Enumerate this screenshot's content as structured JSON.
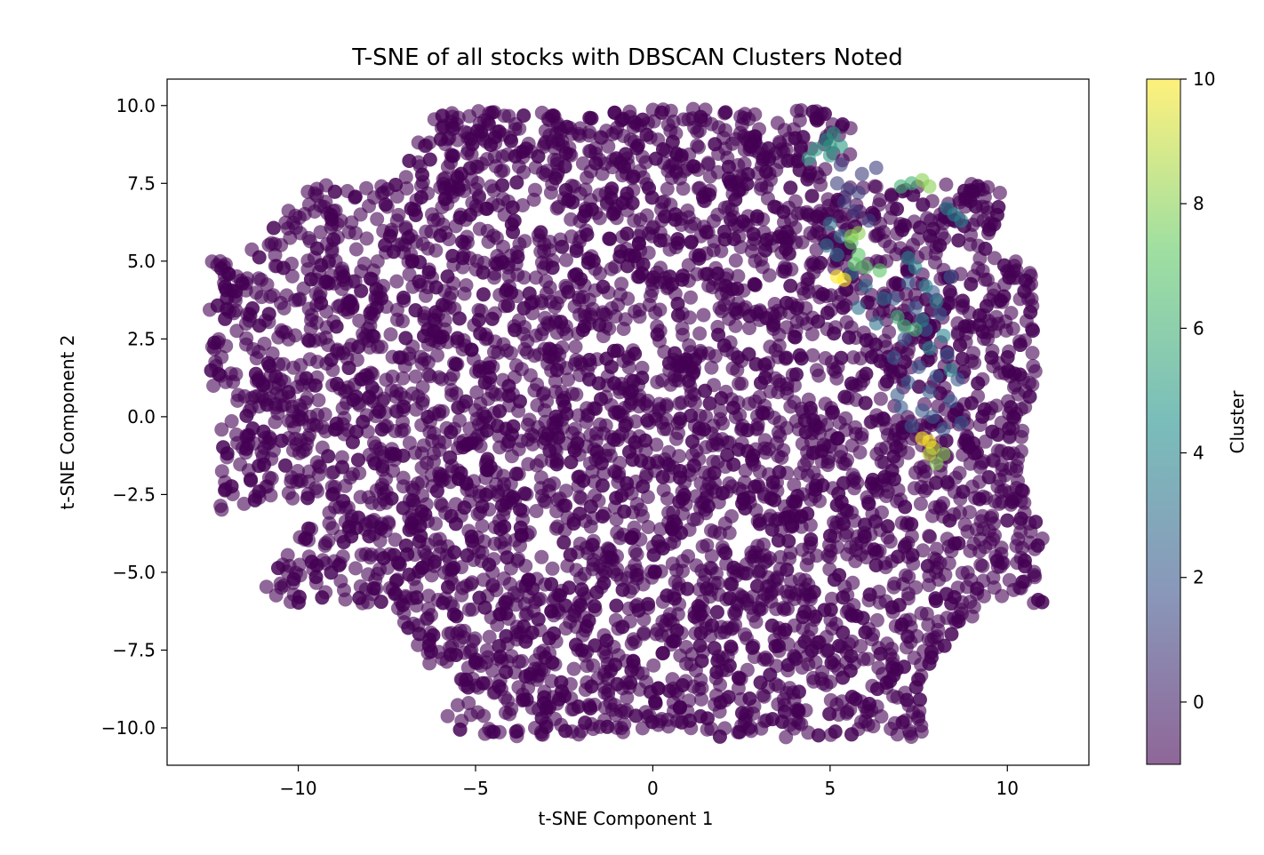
{
  "chart_data": {
    "type": "scatter",
    "title": "T-SNE of all stocks with DBSCAN Clusters Noted",
    "xlabel": "t-SNE Component 1",
    "ylabel": "t-SNE Component 2",
    "xlim": [
      -13.7,
      12.3
    ],
    "ylim": [
      -11.2,
      10.85
    ],
    "xticks": [
      -10,
      -5,
      0,
      5,
      10
    ],
    "xtick_labels": [
      "−10",
      "−5",
      "0",
      "5",
      "10"
    ],
    "yticks": [
      10.0,
      7.5,
      5.0,
      2.5,
      0.0,
      -2.5,
      -5.0,
      -7.5,
      -10.0
    ],
    "ytick_labels": [
      "10.0",
      "7.5",
      "5.0",
      "2.5",
      "0.0",
      "−2.5",
      "−5.0",
      "−7.5",
      "−10.0"
    ],
    "grid": false,
    "point_alpha": 0.6,
    "colormap": "viridis",
    "colors": {
      "noise": "#440154",
      "viridis_stops": [
        "#440154",
        "#3b528b",
        "#21918c",
        "#5ec962",
        "#fde725"
      ]
    },
    "colorbar": {
      "label": "Cluster",
      "range": [
        -1,
        10
      ],
      "ticks": [
        0,
        2,
        4,
        6,
        8,
        10
      ],
      "tick_labels": [
        "0",
        "2",
        "4",
        "6",
        "8",
        "10"
      ]
    },
    "clusters": [
      {
        "label": 1,
        "points": [
          [
            5.2,
            7.5
          ],
          [
            5.5,
            7.3
          ],
          [
            5.8,
            7.2
          ],
          [
            5.4,
            6.9
          ],
          [
            5.7,
            6.6
          ],
          [
            6.1,
            6.3
          ],
          [
            5.9,
            7.8
          ],
          [
            6.3,
            8.0
          ],
          [
            5.3,
            8.1
          ]
        ]
      },
      {
        "label": 2,
        "points": [
          [
            7.6,
            0.2
          ],
          [
            7.9,
            0.0
          ],
          [
            7.3,
            -0.3
          ],
          [
            7.0,
            0.3
          ],
          [
            8.2,
            -0.4
          ],
          [
            7.8,
            0.8
          ],
          [
            7.2,
            1.1
          ],
          [
            8.4,
            0.5
          ],
          [
            7.5,
            1.6
          ],
          [
            8.0,
            1.3
          ],
          [
            6.8,
            1.9
          ],
          [
            8.3,
            2.0
          ],
          [
            7.1,
            2.5
          ],
          [
            7.7,
            2.8
          ],
          [
            8.1,
            3.3
          ],
          [
            7.4,
            3.5
          ],
          [
            6.8,
            3.8
          ],
          [
            7.9,
            4.0
          ],
          [
            7.2,
            4.3
          ],
          [
            8.4,
            4.5
          ],
          [
            8.6,
            1.2
          ],
          [
            6.9,
            0.7
          ],
          [
            8.7,
            -0.2
          ]
        ]
      },
      {
        "label": 3,
        "points": [
          [
            5.0,
            6.2
          ],
          [
            5.3,
            5.8
          ],
          [
            4.9,
            5.5
          ],
          [
            5.2,
            5.2
          ],
          [
            5.6,
            4.6
          ],
          [
            6.0,
            4.2
          ],
          [
            6.5,
            3.8
          ],
          [
            5.8,
            3.5
          ],
          [
            6.3,
            3.0
          ]
        ]
      },
      {
        "label": 4,
        "points": [
          [
            8.5,
            6.5
          ],
          [
            8.7,
            6.3
          ],
          [
            8.3,
            6.7
          ],
          [
            7.2,
            5.1
          ],
          [
            7.4,
            4.8
          ],
          [
            7.7,
            4.2
          ],
          [
            8.0,
            3.7
          ],
          [
            7.6,
            3.1
          ],
          [
            8.2,
            2.6
          ],
          [
            7.8,
            2.2
          ],
          [
            8.4,
            1.5
          ]
        ]
      },
      {
        "label": 5,
        "points": [
          [
            4.6,
            8.6
          ],
          [
            4.9,
            8.9
          ],
          [
            5.0,
            8.4
          ],
          [
            5.3,
            8.7
          ],
          [
            4.4,
            8.3
          ],
          [
            5.1,
            9.1
          ],
          [
            5.0,
            8.7
          ]
        ]
      },
      {
        "label": 6,
        "points": [
          [
            7.0,
            7.4
          ],
          [
            7.3,
            7.5
          ],
          [
            7.1,
            2.9
          ],
          [
            7.4,
            2.8
          ],
          [
            6.9,
            3.2
          ]
        ]
      },
      {
        "label": 7,
        "points": [
          [
            5.7,
            4.9
          ],
          [
            6.0,
            4.8
          ],
          [
            6.4,
            4.7
          ],
          [
            5.8,
            5.2
          ],
          [
            5.6,
            5.6
          ]
        ]
      },
      {
        "label": 8,
        "points": [
          [
            7.6,
            7.6
          ],
          [
            7.8,
            7.4
          ],
          [
            5.6,
            5.8
          ],
          [
            5.8,
            5.9
          ],
          [
            8.0,
            -1.5
          ],
          [
            8.2,
            -1.2
          ]
        ]
      },
      {
        "label": 9,
        "points": [
          [
            7.8,
            -1.2
          ],
          [
            7.9,
            -1.0
          ]
        ]
      },
      {
        "label": 10,
        "points": [
          [
            5.2,
            4.5
          ],
          [
            5.4,
            4.4
          ],
          [
            7.6,
            -0.7
          ],
          [
            7.8,
            -0.8
          ]
        ]
      }
    ],
    "noise_points_note": ""
  }
}
